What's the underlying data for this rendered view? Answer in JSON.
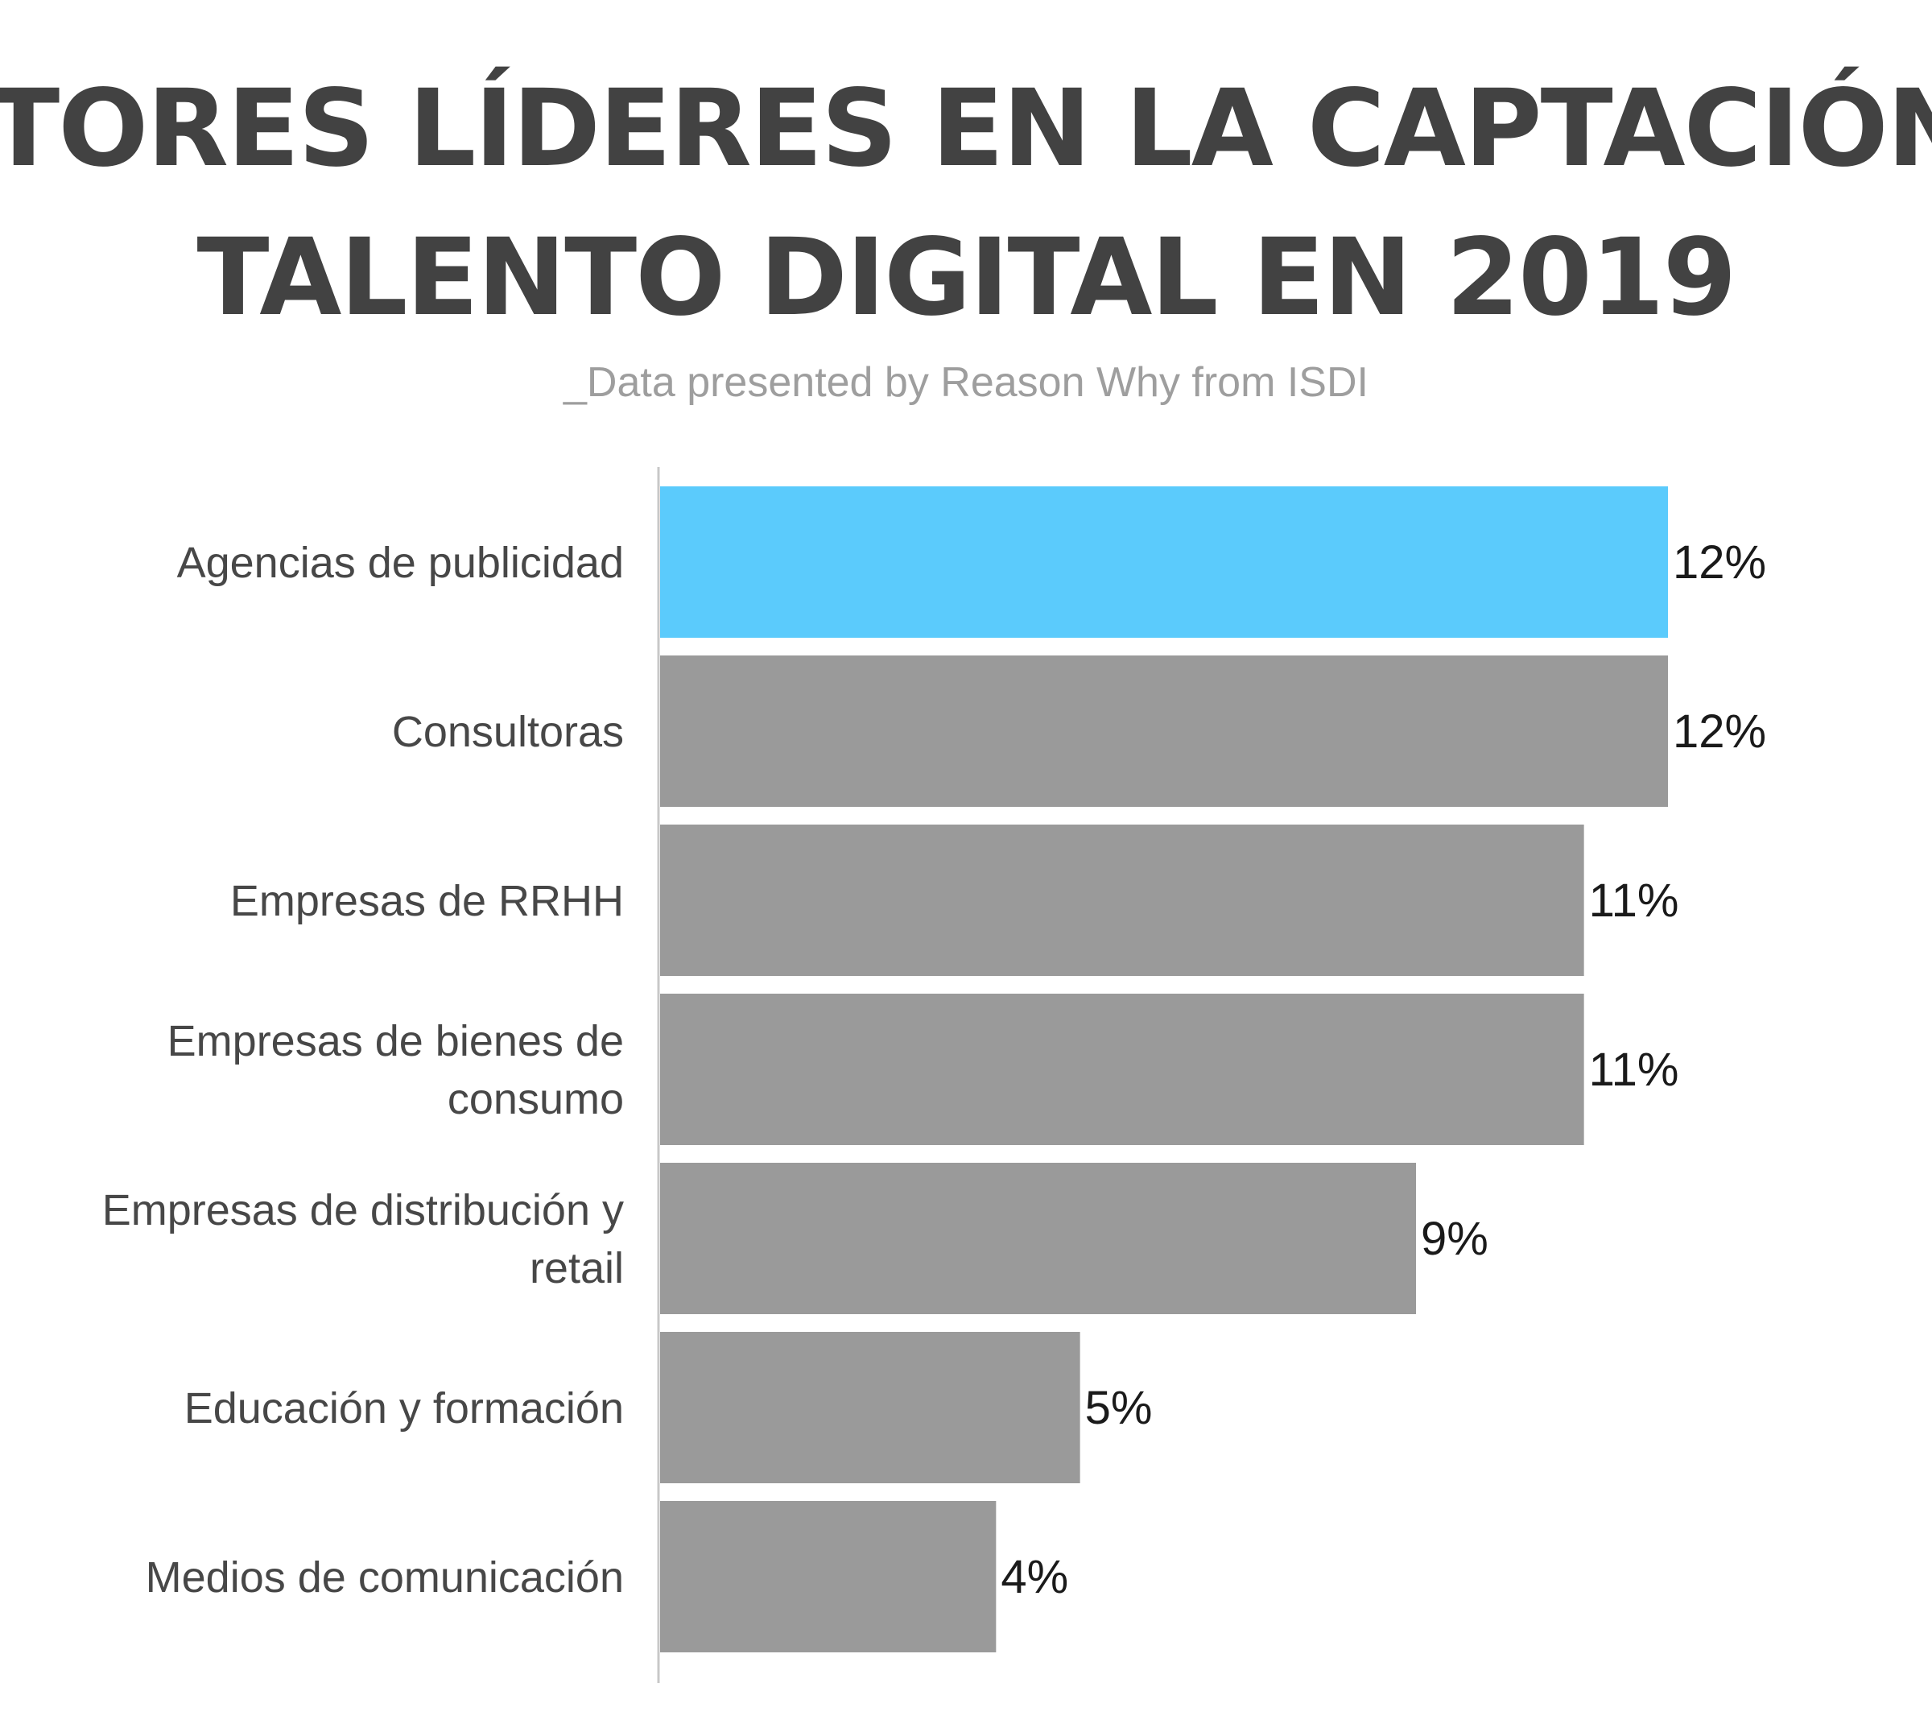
{
  "chart_data": {
    "type": "bar",
    "orientation": "horizontal",
    "title_lines": [
      "SECTORES LÍDERES EN LA CAPTACIÓN DE",
      "TALENTO DIGITAL EN 2019"
    ],
    "subtitle": "_Data presented by Reason Why from ISDI",
    "categories": [
      [
        "Agencias de publicidad"
      ],
      [
        "Consultoras"
      ],
      [
        "Empresas de RRHH"
      ],
      [
        "Empresas de bienes de",
        "consumo"
      ],
      [
        "Empresas de distribución y",
        "retail"
      ],
      [
        "Educación y formación"
      ],
      [
        "Medios de comunicación"
      ]
    ],
    "values": [
      12,
      12,
      11,
      11,
      9,
      5,
      4
    ],
    "value_labels": [
      "12%",
      "12%",
      "11%",
      "11%",
      "9%",
      "5%",
      "4%"
    ],
    "xlim": [
      0,
      12
    ],
    "grid": false,
    "legend": "none",
    "colors": {
      "highlight": "#5bcbfc",
      "default": "#9a9a9a",
      "axis": "#c8c8c8",
      "title": "#424242",
      "subtitle": "#9e9e9e"
    },
    "highlight_index": 0
  }
}
